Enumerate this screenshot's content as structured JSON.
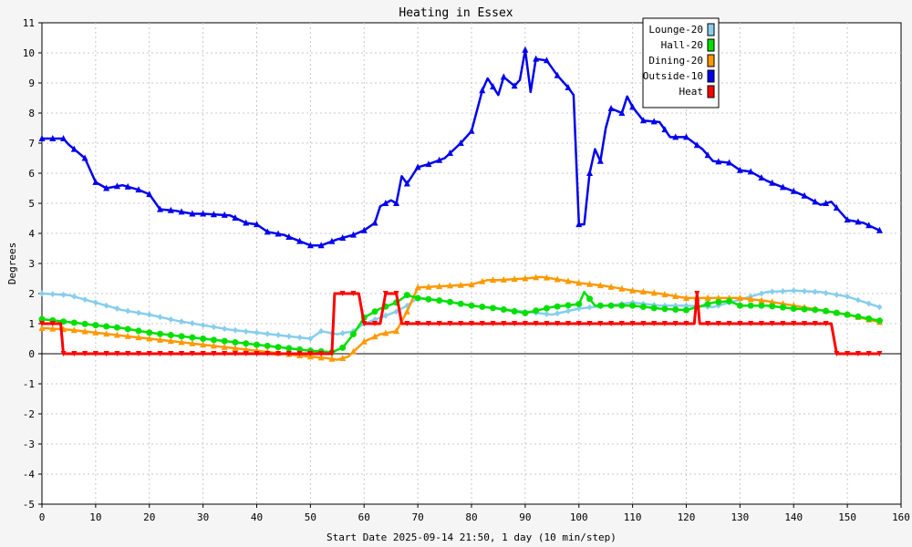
{
  "chart_data": {
    "type": "line",
    "title": "Heating in Essex",
    "xlabel": "Start Date 2025-09-14 21:50, 1 day (10 min/step)",
    "ylabel": "Degrees",
    "xlim": [
      0,
      160
    ],
    "ylim": [
      -5,
      11
    ],
    "xticks": [
      "0",
      "10",
      "20",
      "30",
      "40",
      "50",
      "60",
      "70",
      "80",
      "90",
      "100",
      "110",
      "120",
      "130",
      "140",
      "150",
      "160"
    ],
    "yticks": [
      "11",
      "10",
      "9",
      "8",
      "7",
      "6",
      "5",
      "4",
      "3",
      "2",
      "1",
      "0",
      "-1",
      "-2",
      "-3",
      "-4",
      "-5"
    ],
    "grid": true,
    "legend_position": "top-right",
    "series": [
      {
        "name": "Lounge-20",
        "color": "#87ceeb",
        "x": [
          0,
          5,
          10,
          15,
          20,
          25,
          30,
          35,
          40,
          45,
          50,
          52,
          55,
          58,
          60,
          63,
          66,
          68,
          70,
          75,
          80,
          85,
          90,
          95,
          100,
          105,
          110,
          115,
          120,
          125,
          130,
          135,
          140,
          145,
          150,
          156
        ],
        "y": [
          2.0,
          1.95,
          1.7,
          1.45,
          1.3,
          1.1,
          0.95,
          0.8,
          0.7,
          0.6,
          0.5,
          0.75,
          0.65,
          0.75,
          1.0,
          1.2,
          1.4,
          1.6,
          1.85,
          1.75,
          1.6,
          1.5,
          1.4,
          1.3,
          1.5,
          1.6,
          1.7,
          1.6,
          1.6,
          1.55,
          1.8,
          2.05,
          2.1,
          2.05,
          1.9,
          1.55
        ]
      },
      {
        "name": "Hall-20",
        "color": "#00e000",
        "x": [
          0,
          5,
          10,
          15,
          20,
          25,
          30,
          35,
          40,
          45,
          50,
          54,
          56,
          58,
          60,
          63,
          66,
          68,
          70,
          75,
          80,
          85,
          90,
          95,
          100,
          101,
          103,
          110,
          115,
          120,
          125,
          128,
          130,
          135,
          140,
          145,
          150,
          156
        ],
        "y": [
          1.15,
          1.05,
          0.95,
          0.85,
          0.7,
          0.6,
          0.5,
          0.4,
          0.3,
          0.2,
          0.1,
          0.05,
          0.2,
          0.65,
          1.2,
          1.5,
          1.7,
          1.95,
          1.85,
          1.75,
          1.6,
          1.5,
          1.35,
          1.55,
          1.65,
          2.05,
          1.6,
          1.6,
          1.5,
          1.45,
          1.7,
          1.75,
          1.6,
          1.6,
          1.5,
          1.45,
          1.3,
          1.1
        ]
      },
      {
        "name": "Dining-20",
        "color": "#ff9900",
        "x": [
          0,
          5,
          10,
          15,
          20,
          25,
          30,
          35,
          40,
          45,
          50,
          53,
          55,
          57,
          60,
          63,
          66,
          68,
          70,
          75,
          80,
          83,
          85,
          90,
          93,
          95,
          100,
          105,
          110,
          115,
          120,
          125,
          130,
          135,
          140,
          145,
          150,
          156
        ],
        "y": [
          0.85,
          0.8,
          0.7,
          0.6,
          0.5,
          0.4,
          0.3,
          0.2,
          0.1,
          0.0,
          -0.1,
          -0.15,
          -0.2,
          -0.1,
          0.4,
          0.65,
          0.75,
          1.4,
          2.2,
          2.25,
          2.3,
          2.45,
          2.45,
          2.5,
          2.55,
          2.5,
          2.35,
          2.25,
          2.1,
          2.0,
          1.85,
          1.85,
          1.85,
          1.75,
          1.6,
          1.45,
          1.3,
          1.05
        ]
      },
      {
        "name": "Outside-10",
        "color": "#0000ee",
        "x": [
          0,
          4,
          5,
          8,
          10,
          12,
          15,
          18,
          20,
          22,
          25,
          28,
          30,
          35,
          38,
          40,
          42,
          45,
          50,
          52,
          55,
          58,
          60,
          62,
          63,
          65,
          66,
          67,
          68,
          70,
          72,
          75,
          78,
          80,
          82,
          83,
          85,
          86,
          88,
          89,
          90,
          91,
          92,
          94,
          96,
          98,
          99,
          100,
          101,
          102,
          103,
          104,
          105,
          106,
          108,
          109,
          110,
          112,
          115,
          117,
          120,
          123,
          125,
          128,
          130,
          132,
          135,
          137,
          140,
          142,
          145,
          147,
          150,
          153,
          156
        ],
        "y": [
          7.15,
          7.15,
          6.95,
          6.5,
          5.7,
          5.5,
          5.6,
          5.45,
          5.3,
          4.8,
          4.75,
          4.65,
          4.65,
          4.6,
          4.35,
          4.3,
          4.05,
          3.95,
          3.6,
          3.6,
          3.8,
          3.95,
          4.1,
          4.35,
          4.9,
          5.1,
          5.0,
          5.9,
          5.65,
          6.2,
          6.3,
          6.5,
          7.0,
          7.4,
          8.75,
          9.15,
          8.6,
          9.2,
          8.9,
          9.1,
          10.1,
          8.7,
          9.8,
          9.75,
          9.25,
          8.85,
          8.6,
          4.3,
          4.3,
          6.0,
          6.8,
          6.4,
          7.5,
          8.15,
          8.0,
          8.55,
          8.2,
          7.75,
          7.7,
          7.2,
          7.2,
          6.8,
          6.4,
          6.35,
          6.1,
          6.05,
          5.75,
          5.6,
          5.4,
          5.25,
          4.95,
          5.05,
          4.45,
          4.35,
          4.1
        ]
      },
      {
        "name": "Heat",
        "color": "#ff0000",
        "x": [
          0,
          3.5,
          4,
          54,
          54.5,
          59,
          60,
          63,
          64,
          66,
          67,
          121.5,
          122,
          122.5,
          147,
          148,
          156
        ],
        "y": [
          1,
          1,
          0,
          0,
          2,
          2,
          1,
          1,
          2,
          2,
          1,
          1,
          2,
          1,
          1,
          0,
          0
        ]
      }
    ]
  }
}
